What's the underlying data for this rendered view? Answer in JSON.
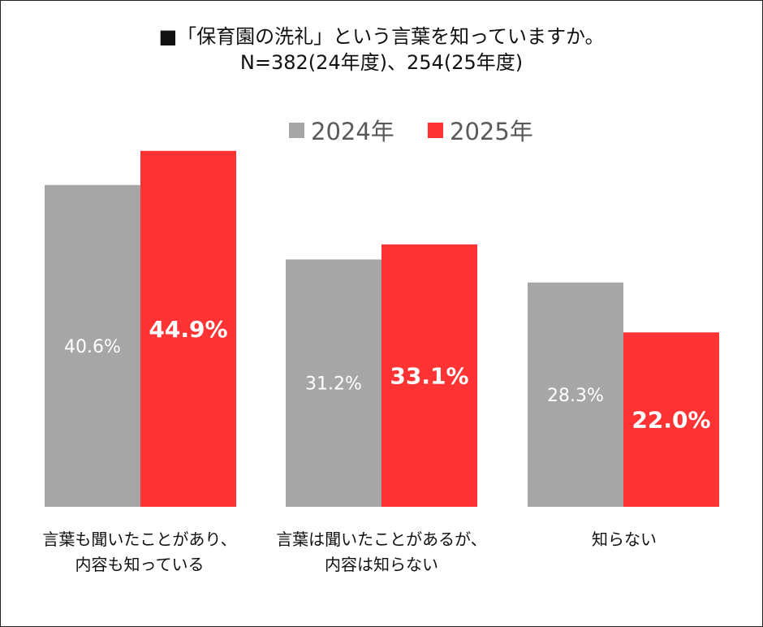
{
  "chart_data": {
    "type": "bar",
    "title": "■「保育園の洗礼」という言葉を知っていますか。",
    "subtitle": "N=382(24年度)、254(25年度)",
    "categories": [
      [
        "言葉も聞いたことがあり、",
        "内容も知っている"
      ],
      [
        "言葉は聞いたことがあるが、",
        "内容は知らない"
      ],
      [
        "知らない"
      ]
    ],
    "series": [
      {
        "name": "2024年",
        "color": "#a6a6a6",
        "values": [
          40.6,
          31.2,
          28.3
        ],
        "labels": [
          "40.6%",
          "31.2%",
          "28.3%"
        ]
      },
      {
        "name": "2025年",
        "color": "#ff3333",
        "values": [
          44.9,
          33.1,
          22.0
        ],
        "labels": [
          "44.9%",
          "33.1%",
          "22.0%"
        ]
      }
    ],
    "ylim": [
      0,
      50
    ],
    "grid": false,
    "legend": "top-right"
  }
}
